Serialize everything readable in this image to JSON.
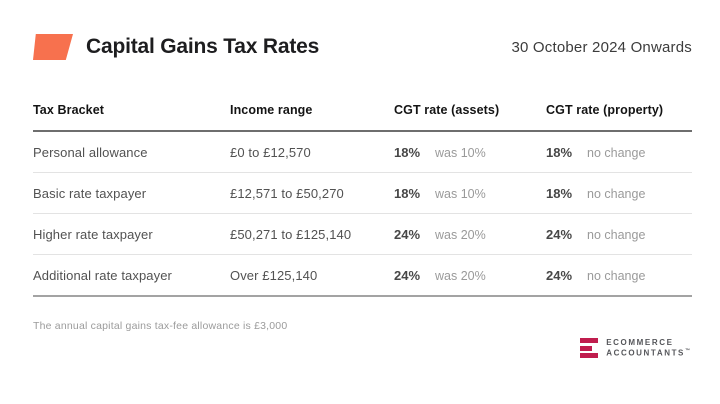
{
  "header": {
    "title": "Capital Gains Tax Rates",
    "date_range": "30 October 2024 Onwards"
  },
  "table": {
    "columns": [
      "Tax Bracket",
      "Income range",
      "CGT rate (assets)",
      "CGT rate (property)"
    ],
    "rows": [
      {
        "bracket": "Personal allowance",
        "income_range": "£0 to £12,570",
        "assets_rate": "18%",
        "assets_note": "was 10%",
        "property_rate": "18%",
        "property_note": "no change"
      },
      {
        "bracket": "Basic rate taxpayer",
        "income_range": "£12,571 to £50,270",
        "assets_rate": "18%",
        "assets_note": "was 10%",
        "property_rate": "18%",
        "property_note": "no change"
      },
      {
        "bracket": "Higher rate taxpayer",
        "income_range": "£50,271 to £125,140",
        "assets_rate": "24%",
        "assets_note": "was 20%",
        "property_rate": "24%",
        "property_note": "no change"
      },
      {
        "bracket": "Additional rate taxpayer",
        "income_range": "Over £125,140",
        "assets_rate": "24%",
        "assets_note": "was 20%",
        "property_rate": "24%",
        "property_note": "no change"
      }
    ]
  },
  "footnote": "The annual capital gains tax-fee allowance is £3,000",
  "branding": {
    "line1": "ECOMMERCE",
    "line2": "ACCOUNTANTS",
    "trademark": "™"
  },
  "colors": {
    "accent_orange": "#F7714E",
    "brand_crimson": "#C01D4E"
  }
}
